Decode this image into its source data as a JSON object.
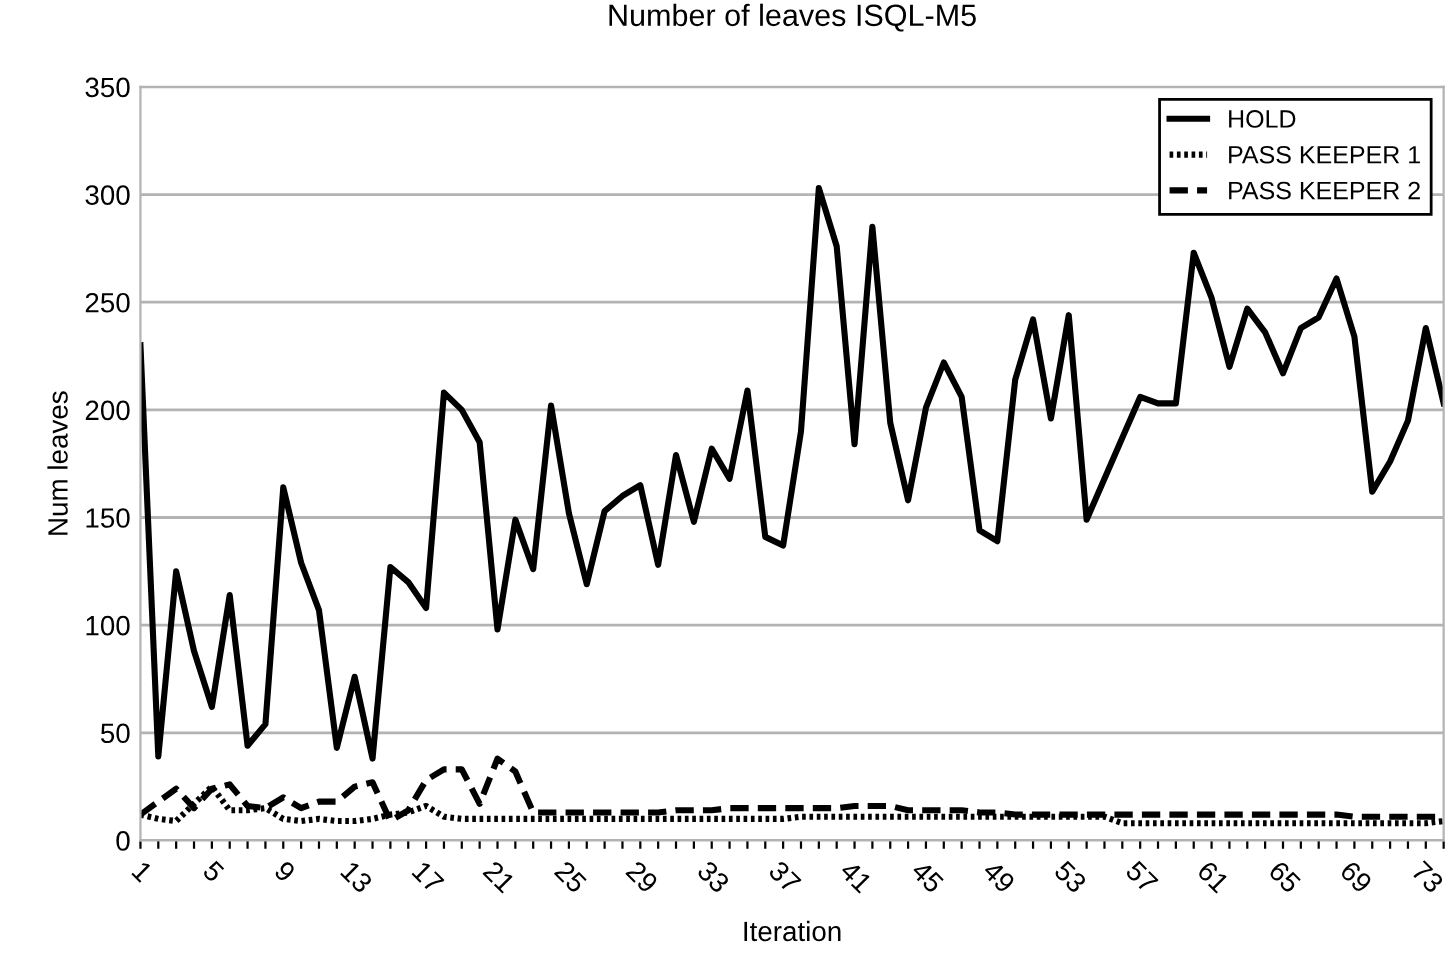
{
  "chart_data": {
    "type": "line",
    "title": "Number of leaves ISQL-M5",
    "xlabel": "Iteration",
    "ylabel": "Num leaves",
    "categories": [
      "1",
      null,
      null,
      null,
      "5",
      null,
      null,
      null,
      "9",
      null,
      null,
      null,
      "13",
      null,
      null,
      null,
      "17",
      null,
      null,
      null,
      "21",
      null,
      null,
      null,
      "25",
      null,
      null,
      null,
      "29",
      null,
      null,
      null,
      "33",
      null,
      null,
      null,
      "37",
      null,
      null,
      null,
      "41",
      null,
      null,
      null,
      "45",
      null,
      null,
      null,
      "49",
      null,
      null,
      null,
      "53",
      null,
      null,
      null,
      "57",
      null,
      null,
      null,
      "61",
      null,
      null,
      null,
      "65",
      null,
      null,
      null,
      "69",
      null,
      null,
      null,
      "73",
      null
    ],
    "series": [
      {
        "name": "HOLD",
        "color": "#000000",
        "line_style": "solid",
        "values": [
          230,
          39,
          125,
          88,
          62,
          114,
          44,
          54,
          164,
          129,
          107,
          43,
          76,
          38,
          127,
          120,
          108,
          208,
          200,
          185,
          98,
          149,
          126,
          202,
          152,
          119,
          153,
          160,
          165,
          128,
          179,
          148,
          182,
          168,
          209,
          141,
          137,
          190,
          303,
          276,
          184,
          285,
          194,
          158,
          201,
          222,
          206,
          144,
          139,
          214,
          242,
          196,
          244,
          149,
          168,
          187,
          206,
          203,
          203,
          273,
          252,
          220,
          247,
          236,
          217,
          238,
          243,
          261,
          234,
          162,
          176,
          195,
          238,
          203
        ]
      },
      {
        "name": "PASS KEEPER 1",
        "color": "#000000",
        "line_style": "dotted",
        "values": [
          12,
          10,
          9,
          17,
          25,
          14,
          14,
          15,
          10,
          9,
          10,
          9,
          9,
          10,
          12,
          13,
          16,
          11,
          10,
          10,
          10,
          10,
          10,
          10,
          10,
          10,
          10,
          10,
          10,
          10,
          10,
          10,
          10,
          10,
          10,
          10,
          10,
          11,
          11,
          11,
          11,
          11,
          11,
          11,
          11,
          11,
          11,
          11,
          11,
          11,
          11,
          11,
          11,
          11,
          11,
          8,
          8,
          8,
          8,
          8,
          8,
          8,
          8,
          8,
          8,
          8,
          8,
          8,
          8,
          8,
          8,
          8,
          8,
          9
        ]
      },
      {
        "name": "PASS KEEPER 2",
        "color": "#000000",
        "line_style": "dashed",
        "values": [
          12,
          18,
          24,
          15,
          24,
          26,
          16,
          15,
          20,
          15,
          18,
          18,
          25,
          27,
          9,
          14,
          28,
          33,
          33,
          17,
          38,
          32,
          13,
          13,
          13,
          13,
          13,
          13,
          13,
          13,
          14,
          14,
          14,
          15,
          15,
          15,
          15,
          15,
          15,
          15,
          16,
          16,
          16,
          14,
          14,
          14,
          14,
          13,
          13,
          12,
          12,
          12,
          12,
          12,
          12,
          12,
          12,
          12,
          12,
          12,
          12,
          12,
          12,
          12,
          12,
          12,
          12,
          12,
          11,
          11,
          11,
          11,
          11,
          11
        ]
      }
    ],
    "ylim": [
      0,
      350
    ],
    "yticks": [
      0,
      50,
      100,
      150,
      200,
      250,
      300,
      350
    ],
    "grid": "y",
    "legend": "top right"
  }
}
